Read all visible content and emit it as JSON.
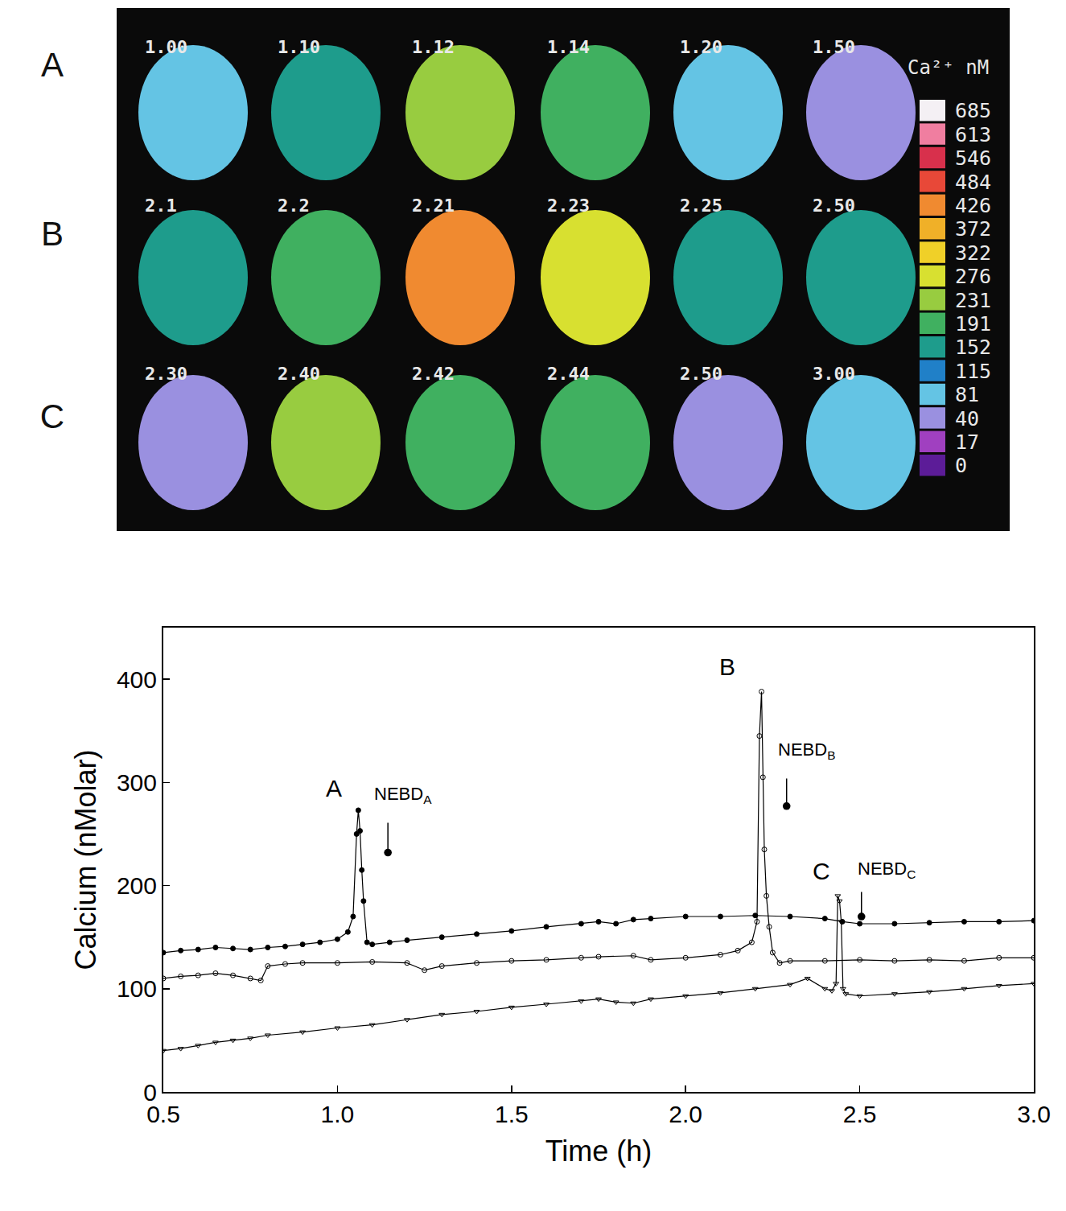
{
  "image_panel": {
    "rows": [
      {
        "letter": "A",
        "frames": [
          {
            "label": "1.00",
            "level": 81
          },
          {
            "label": "1.10",
            "level": 152
          },
          {
            "label": "1.12",
            "level": 231
          },
          {
            "label": "1.14",
            "level": 191
          },
          {
            "label": "1.20",
            "level": 81
          },
          {
            "label": "1.50",
            "level": 40
          }
        ]
      },
      {
        "letter": "B",
        "frames": [
          {
            "label": "2.1",
            "level": 152
          },
          {
            "label": "2.2",
            "level": 191
          },
          {
            "label": "2.21",
            "level": 426
          },
          {
            "label": "2.23",
            "level": 276
          },
          {
            "label": "2.25",
            "level": 152
          },
          {
            "label": "2.50",
            "level": 152
          }
        ]
      },
      {
        "letter": "C",
        "frames": [
          {
            "label": "2.30",
            "level": 40
          },
          {
            "label": "2.40",
            "level": 231
          },
          {
            "label": "2.42",
            "level": 191
          },
          {
            "label": "2.44",
            "level": 191
          },
          {
            "label": "2.50",
            "level": 40
          },
          {
            "label": "3.00",
            "level": 81
          }
        ]
      }
    ],
    "color_scale": {
      "title": "Ca²⁺ nM",
      "levels": [
        {
          "value": 685,
          "color": "#f4f0f4"
        },
        {
          "value": 613,
          "color": "#f07ea0"
        },
        {
          "value": 546,
          "color": "#d8304c"
        },
        {
          "value": 484,
          "color": "#e84838"
        },
        {
          "value": 426,
          "color": "#f08a30"
        },
        {
          "value": 372,
          "color": "#f0b028"
        },
        {
          "value": 322,
          "color": "#f0d028"
        },
        {
          "value": 276,
          "color": "#d8e030"
        },
        {
          "value": 231,
          "color": "#98cc40"
        },
        {
          "value": 191,
          "color": "#40b060"
        },
        {
          "value": 152,
          "color": "#1e9c8c"
        },
        {
          "value": 115,
          "color": "#2080c8"
        },
        {
          "value": 81,
          "color": "#64c4e4"
        },
        {
          "value": 40,
          "color": "#9a90e0"
        },
        {
          "value": 17,
          "color": "#a040c0"
        },
        {
          "value": 0,
          "color": "#5c1c98"
        }
      ]
    }
  },
  "chart_data": {
    "type": "line",
    "x_label": "Time (h)",
    "y_label": "Calcium (nMolar)",
    "xlim": [
      0.5,
      3.0
    ],
    "ylim": [
      0,
      450
    ],
    "xticks": [
      0.5,
      {
        "value": 1,
        "label": "1.0"
      },
      1.5,
      {
        "value": 2,
        "label": "2.0"
      },
      2.5,
      {
        "value": 3,
        "label": "3.0"
      }
    ],
    "yticks": [
      0,
      100,
      200,
      300,
      400
    ],
    "grid": false,
    "series": [
      {
        "color": "#000000",
        "marker": "circle",
        "line_style": "solid",
        "x": [
          0.5,
          0.55,
          0.6,
          0.65,
          0.7,
          0.75,
          0.8,
          0.85,
          0.9,
          0.95,
          1.0,
          1.03,
          1.045,
          1.055,
          1.06,
          1.065,
          1.07,
          1.075,
          1.085,
          1.1,
          1.15,
          1.2,
          1.3,
          1.4,
          1.5,
          1.6,
          1.7,
          1.75,
          1.8,
          1.85,
          1.9,
          2.0,
          2.1,
          2.2,
          2.3,
          2.4,
          2.45,
          2.5,
          2.6,
          2.7,
          2.8,
          2.9,
          3.0
        ],
        "values": [
          135,
          137,
          138,
          140,
          139,
          138,
          140,
          141,
          143,
          145,
          148,
          155,
          170,
          250,
          273,
          253,
          215,
          185,
          145,
          143,
          145,
          147,
          150,
          153,
          156,
          160,
          163,
          165,
          163,
          167,
          168,
          170,
          170,
          171,
          170,
          168,
          165,
          163,
          163,
          164,
          165,
          165,
          166
        ]
      },
      {
        "color": "#000000",
        "marker": "circle-open",
        "line_style": "solid",
        "x": [
          0.5,
          0.55,
          0.6,
          0.65,
          0.7,
          0.75,
          0.78,
          0.8,
          0.85,
          0.9,
          1.0,
          1.1,
          1.2,
          1.25,
          1.3,
          1.4,
          1.5,
          1.6,
          1.7,
          1.75,
          1.85,
          1.9,
          2.0,
          2.1,
          2.15,
          2.19,
          2.205,
          2.212,
          2.218,
          2.222,
          2.226,
          2.232,
          2.24,
          2.25,
          2.27,
          2.3,
          2.4,
          2.5,
          2.6,
          2.7,
          2.8,
          2.9,
          3.0
        ],
        "values": [
          110,
          112,
          113,
          115,
          113,
          110,
          108,
          122,
          124,
          125,
          125,
          126,
          125,
          118,
          122,
          125,
          127,
          128,
          130,
          131,
          132,
          128,
          130,
          133,
          137,
          145,
          165,
          345,
          388,
          305,
          235,
          190,
          160,
          135,
          125,
          127,
          127,
          128,
          127,
          128,
          127,
          130,
          130
        ]
      },
      {
        "color": "#000000",
        "marker": "triangle-down-open",
        "line_style": "solid",
        "x": [
          0.5,
          0.55,
          0.6,
          0.65,
          0.7,
          0.75,
          0.8,
          0.9,
          1.0,
          1.1,
          1.2,
          1.3,
          1.4,
          1.5,
          1.6,
          1.7,
          1.75,
          1.8,
          1.85,
          1.9,
          2.0,
          2.1,
          2.2,
          2.3,
          2.35,
          2.4,
          2.42,
          2.432,
          2.437,
          2.442,
          2.447,
          2.452,
          2.46,
          2.5,
          2.6,
          2.7,
          2.8,
          2.9,
          3.0
        ],
        "values": [
          40,
          42,
          45,
          48,
          50,
          52,
          55,
          58,
          62,
          65,
          70,
          75,
          78,
          82,
          85,
          88,
          90,
          87,
          86,
          90,
          93,
          96,
          100,
          104,
          110,
          100,
          98,
          105,
          190,
          185,
          165,
          100,
          95,
          93,
          95,
          97,
          100,
          103,
          105
        ]
      }
    ],
    "annotations": [
      {
        "text": "A",
        "x": 0.99,
        "y": 280
      },
      {
        "text": "B",
        "x": 2.12,
        "y": 398
      },
      {
        "text": "C",
        "x": 2.39,
        "y": 200
      },
      {
        "text": "NEBD",
        "subscript": "A",
        "x": 1.1,
        "y": 275
      },
      {
        "text": "NEBD",
        "subscript": "B",
        "x": 2.26,
        "y": 318
      },
      {
        "text": "NEBD",
        "subscript": "C",
        "x": 2.49,
        "y": 203
      }
    ],
    "arrows": [
      {
        "x": 1.145,
        "y_from": 262,
        "y_to": 232
      },
      {
        "x": 2.29,
        "y_from": 305,
        "y_to": 277
      },
      {
        "x": 2.505,
        "y_from": 195,
        "y_to": 170
      }
    ]
  }
}
